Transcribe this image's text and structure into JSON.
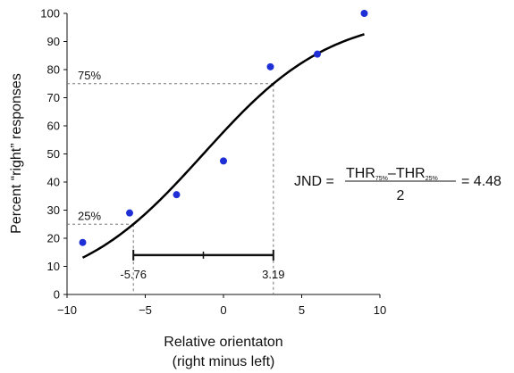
{
  "chart_data": {
    "type": "scatter",
    "xlabel": [
      "Relative orientaton",
      "(right minus left)"
    ],
    "ylabel": "Percent “right” responses",
    "xlim": [
      -10,
      10
    ],
    "ylim": [
      0,
      100
    ],
    "x_ticks": [
      "−10",
      "−5",
      "0",
      "5",
      "10"
    ],
    "x_tick_values": [
      -10,
      -5,
      0,
      5,
      10
    ],
    "y_ticks": [
      "0",
      "10",
      "20",
      "30",
      "40",
      "50",
      "60",
      "70",
      "80",
      "90",
      "100"
    ],
    "y_tick_values": [
      0,
      10,
      20,
      30,
      40,
      50,
      60,
      70,
      80,
      90,
      100
    ],
    "grid": false,
    "points": {
      "x": [
        -9,
        -6,
        -3,
        0,
        3,
        6,
        9
      ],
      "y": [
        18.5,
        29,
        35.5,
        47.5,
        81,
        85.5,
        100
      ],
      "color": "#1f2fd6"
    },
    "fit_curve": {
      "type": "logistic",
      "pse": -1.285,
      "spread": 4.075,
      "x_range": [
        -9,
        9
      ],
      "color": "#000000"
    },
    "annotations": {
      "p75_label": "75%",
      "p25_label": "25%",
      "p75_value": 75,
      "p25_value": 25,
      "thr25": -5.76,
      "thr75": 3.19,
      "thr25_label": "-5.76",
      "thr75_label": "3.19",
      "bar_y": 14,
      "bar_mid": -1.285
    },
    "formula": {
      "lhs": "JND =",
      "num_a": "THR",
      "num_a_sub": "75%",
      "minus": "–",
      "num_b": "THR",
      "num_b_sub": "25%",
      "den": "2",
      "rhs": "= 4.48"
    }
  }
}
